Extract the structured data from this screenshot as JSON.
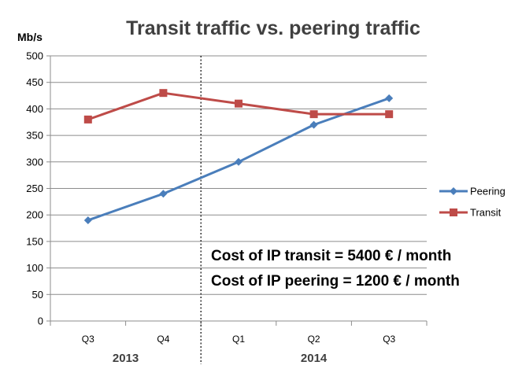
{
  "chart_data": {
    "type": "line",
    "title": "Transit traffic vs. peering traffic",
    "ylabel": "Mb/s",
    "ylim": [
      0,
      500
    ],
    "yticks": [
      0,
      50,
      100,
      150,
      200,
      250,
      300,
      350,
      400,
      450,
      500
    ],
    "categories": [
      "Q3",
      "Q4",
      "Q1",
      "Q2",
      "Q3"
    ],
    "groups": [
      {
        "label": "2013",
        "categories": [
          "Q3",
          "Q4"
        ]
      },
      {
        "label": "2014",
        "categories": [
          "Q1",
          "Q2",
          "Q3"
        ]
      }
    ],
    "grid": true,
    "legend_position": "right",
    "series": [
      {
        "name": "Peering",
        "color": "#4a7ebb",
        "marker": "diamond",
        "values": [
          190,
          240,
          300,
          370,
          420
        ]
      },
      {
        "name": "Transit",
        "color": "#be4b48",
        "marker": "square",
        "values": [
          380,
          430,
          410,
          390,
          390
        ]
      }
    ],
    "annotations": [
      "Cost of IP transit = 5400 € / month",
      "Cost of IP peering = 1200 € / month"
    ]
  }
}
